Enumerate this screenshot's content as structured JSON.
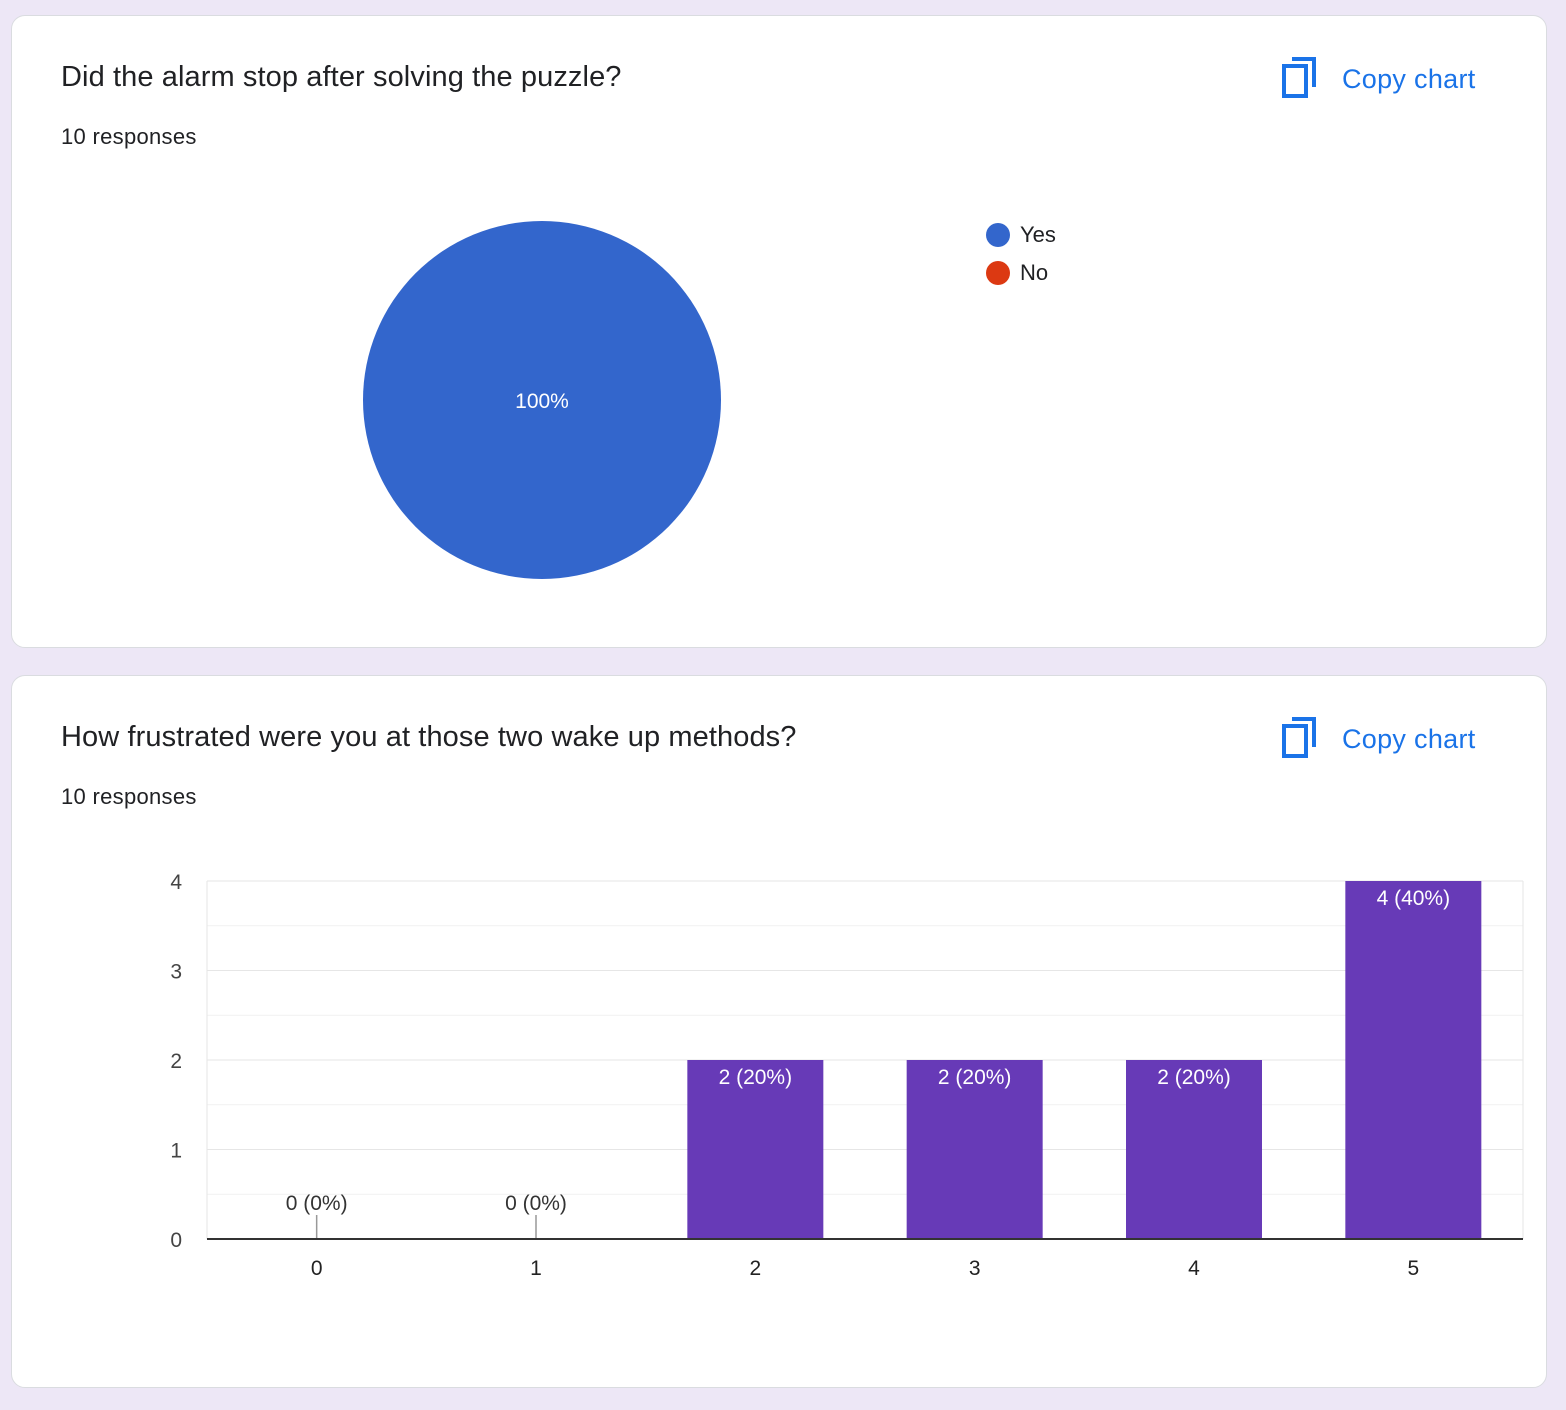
{
  "cards": [
    {
      "title": "Did the alarm stop after solving the puzzle?",
      "responses": "10 responses",
      "copy_label": "Copy chart"
    },
    {
      "title": "How frustrated were you at those two wake up methods?",
      "responses": "10 responses",
      "copy_label": "Copy chart"
    }
  ],
  "colors": {
    "background": "#ede7f6",
    "accent": "#1a73e8",
    "yes": "#3366cc",
    "no": "#dc3912",
    "bar": "#673ab7"
  },
  "icons": {
    "copy": "copy-icon"
  },
  "chart_data": [
    {
      "type": "pie",
      "categories": [
        "Yes",
        "No"
      ],
      "values": [
        100,
        0
      ],
      "slice_labels": [
        "100%",
        ""
      ],
      "colors": [
        "#3366cc",
        "#dc3912"
      ],
      "legend_position": "right"
    },
    {
      "type": "bar",
      "categories": [
        "0",
        "1",
        "2",
        "3",
        "4",
        "5"
      ],
      "values": [
        0,
        0,
        2,
        2,
        2,
        4
      ],
      "data_labels": [
        "0 (0%)",
        "0 (0%)",
        "2 (20%)",
        "2 (20%)",
        "2 (20%)",
        "4 (40%)"
      ],
      "y_ticks": [
        "0",
        "1",
        "2",
        "3",
        "4"
      ],
      "ylim": [
        0,
        4
      ],
      "grid": true,
      "color": "#673ab7"
    }
  ]
}
